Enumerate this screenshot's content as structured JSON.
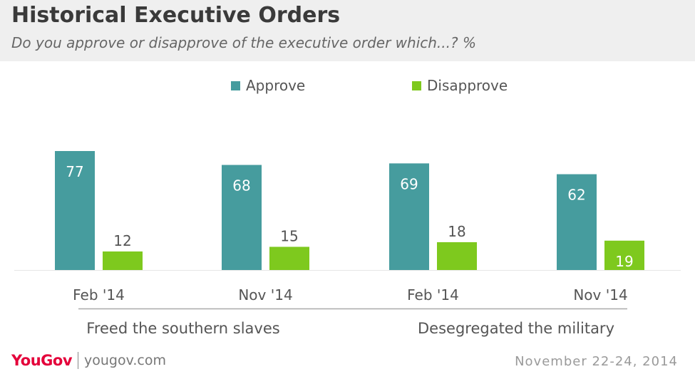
{
  "header": {
    "title": "Historical Executive Orders",
    "subtitle": "Do you approve or disapprove of the executive order which...? %"
  },
  "colors": {
    "approve": "#469c9e",
    "disapprove": "#7ec91e",
    "header_bg": "#efefef",
    "brand": "#e4003a"
  },
  "chart_data": {
    "type": "bar",
    "title": "Historical Executive Orders",
    "subtitle": "Do you approve or disapprove of the executive order which...? %",
    "categories": [
      "Feb '14",
      "Nov '14",
      "Feb '14",
      "Nov '14"
    ],
    "groups": [
      {
        "label": "Freed the southern slaves",
        "categories": [
          "Feb '14",
          "Nov '14"
        ]
      },
      {
        "label": "Desegregated the military",
        "categories": [
          "Feb '14",
          "Nov '14"
        ]
      }
    ],
    "series": [
      {
        "name": "Approve",
        "values": [
          77,
          68,
          69,
          62
        ]
      },
      {
        "name": "Disapprove",
        "values": [
          12,
          15,
          18,
          19
        ]
      }
    ],
    "ylim": [
      0,
      100
    ],
    "grid": false,
    "legend": "top-center",
    "data_labels": true
  },
  "footer": {
    "logo": "YouGov",
    "url": "yougov.com",
    "date": "November 22-24, 2014"
  }
}
